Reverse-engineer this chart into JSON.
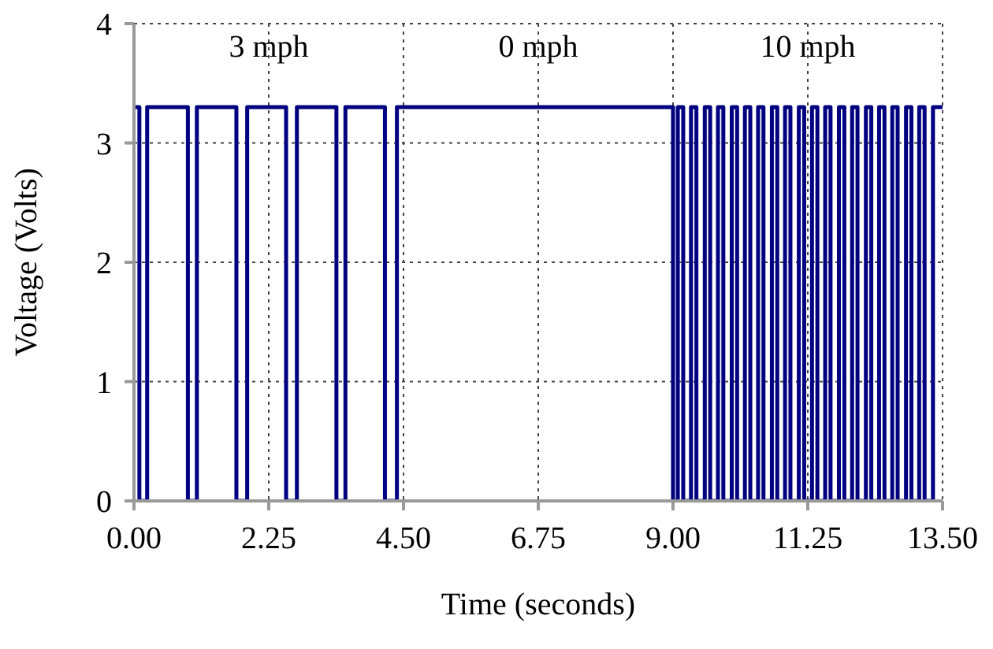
{
  "chart_data": {
    "type": "step",
    "xlabel": "Time (seconds)",
    "ylabel": "Voltage (Volts)",
    "annotations": [
      "3 mph",
      "0 mph",
      "10 mph"
    ],
    "x": [
      0,
      0.09,
      0.22,
      0.9,
      1.05,
      1.71,
      1.89,
      2.54,
      2.72,
      3.38,
      3.53,
      4.19,
      4.39,
      9.0,
      9.08,
      9.17,
      9.3,
      9.39,
      9.53,
      9.62,
      9.75,
      9.84,
      9.98,
      10.07,
      10.2,
      10.29,
      10.42,
      10.51,
      10.65,
      10.74,
      10.87,
      10.96,
      11.1,
      11.19,
      11.32,
      11.41,
      11.54,
      11.63,
      11.77,
      11.86,
      11.99,
      12.08,
      12.22,
      12.31,
      12.44,
      12.53,
      12.66,
      12.75,
      12.89,
      12.98,
      13.11,
      13.2,
      13.34,
      13.5
    ],
    "series": [
      {
        "color": "#000080",
        "values": [
          3.3,
          0,
          3.3,
          0,
          3.3,
          0,
          3.3,
          0,
          3.3,
          0,
          3.3,
          0,
          3.3,
          0,
          3.3,
          0,
          3.3,
          0,
          3.3,
          0,
          3.3,
          0,
          3.3,
          0,
          3.3,
          0,
          3.3,
          0,
          3.3,
          0,
          3.3,
          0,
          3.3,
          0,
          3.3,
          0,
          3.3,
          0,
          3.3,
          0,
          3.3,
          0,
          3.3,
          0,
          3.3,
          0,
          3.3,
          0,
          3.3,
          0,
          3.3,
          0,
          3.3,
          3.3
        ]
      }
    ],
    "xlim": [
      0,
      13.5
    ],
    "xticks": [
      {
        "value": 0,
        "label": "0.00"
      },
      {
        "value": 2.25,
        "label": "2.25"
      },
      {
        "value": 4.5,
        "label": "4.50"
      },
      {
        "value": 6.75,
        "label": "6.75"
      },
      {
        "value": 9,
        "label": "9.00"
      },
      {
        "value": 11.25,
        "label": "11.25"
      },
      {
        "value": 13.5,
        "label": "13.50"
      }
    ],
    "ylim": [
      0,
      4
    ],
    "yticks": [
      0,
      1,
      2,
      3,
      4
    ],
    "grid": true,
    "legend": false,
    "marker": "none",
    "line_style": "solid"
  }
}
